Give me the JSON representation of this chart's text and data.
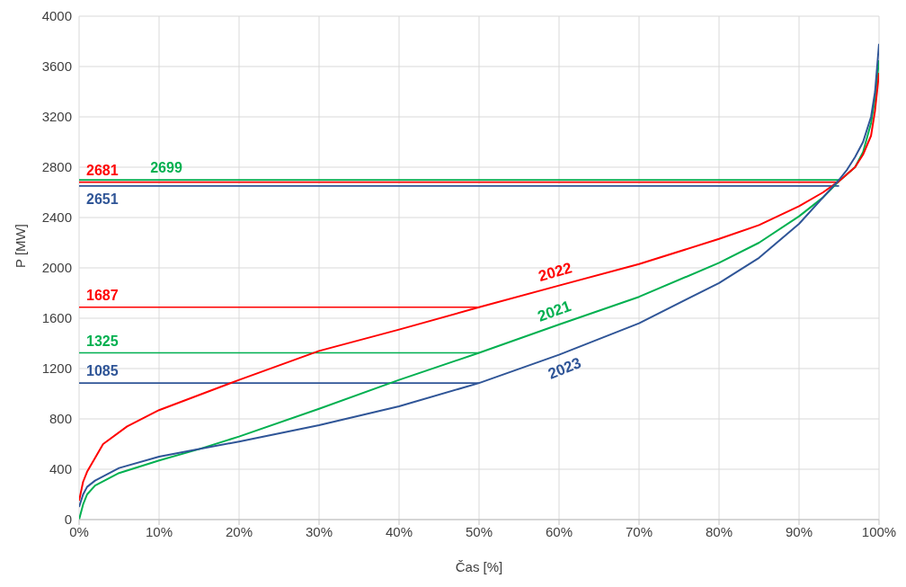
{
  "chart_data": {
    "type": "line",
    "xlabel": "Čas [%]",
    "ylabel": "P [MW]",
    "xlim": [
      0,
      100
    ],
    "xticks": [
      {
        "value": 0,
        "label": "0%"
      },
      {
        "value": 10,
        "label": "10%"
      },
      {
        "value": 20,
        "label": "20%"
      },
      {
        "value": 30,
        "label": "30%"
      },
      {
        "value": 40,
        "label": "40%"
      },
      {
        "value": 50,
        "label": "50%"
      },
      {
        "value": 60,
        "label": "60%"
      },
      {
        "value": 70,
        "label": "70%"
      },
      {
        "value": 80,
        "label": "80%"
      },
      {
        "value": 90,
        "label": "90%"
      },
      {
        "value": 100,
        "label": "100%"
      }
    ],
    "ylim": [
      0,
      4000
    ],
    "yticks": [
      0,
      400,
      800,
      1200,
      1600,
      2000,
      2400,
      2800,
      3200,
      3600,
      4000
    ],
    "grid": true,
    "legend": false,
    "marker": "none",
    "line_style": "solid",
    "series": [
      {
        "color": "#00b050",
        "x": [
          0,
          8,
          95
        ],
        "values": [
          2699,
          2699,
          2699
        ],
        "value_labels": [
          null,
          "2699",
          null
        ]
      },
      {
        "color": "#ff0000",
        "x": [
          0,
          95
        ],
        "values": [
          2681,
          2681
        ],
        "value_labels": [
          "2681",
          null
        ]
      },
      {
        "color": "#2f5597",
        "x": [
          0,
          95
        ],
        "values": [
          2651,
          2651
        ],
        "value_labels": [
          "2651",
          null
        ]
      },
      {
        "color": "#ff0000",
        "x": [
          0,
          50
        ],
        "values": [
          1687,
          1687
        ],
        "value_labels": [
          "1687",
          null
        ]
      },
      {
        "color": "#00b050",
        "x": [
          0,
          50
        ],
        "values": [
          1325,
          1325
        ],
        "value_labels": [
          "1325",
          null
        ]
      },
      {
        "color": "#2f5597",
        "x": [
          0,
          50
        ],
        "values": [
          1085,
          1085
        ],
        "value_labels": [
          "1085",
          null
        ]
      },
      {
        "name": "2021",
        "color": "#00b050",
        "x": [
          0,
          0.5,
          1,
          2,
          5,
          10,
          15,
          20,
          30,
          40,
          50,
          60,
          70,
          80,
          85,
          90,
          93,
          95,
          97,
          98,
          99,
          99.5,
          100
        ],
        "values": [
          0,
          120,
          200,
          270,
          370,
          470,
          560,
          660,
          880,
          1110,
          1325,
          1550,
          1770,
          2040,
          2200,
          2410,
          2560,
          2690,
          2800,
          2920,
          3150,
          3350,
          3650
        ]
      },
      {
        "name": "2022",
        "color": "#ff0000",
        "x": [
          0,
          0.5,
          1,
          3,
          6,
          10,
          20,
          30,
          40,
          50,
          60,
          70,
          80,
          85,
          90,
          93,
          95,
          97,
          98,
          99,
          99.5,
          100
        ],
        "values": [
          150,
          300,
          380,
          600,
          740,
          870,
          1110,
          1340,
          1510,
          1687,
          1860,
          2030,
          2230,
          2340,
          2490,
          2600,
          2690,
          2800,
          2900,
          3050,
          3250,
          3550
        ]
      },
      {
        "name": "2023",
        "color": "#2f5597",
        "x": [
          0,
          0.5,
          1,
          2,
          5,
          10,
          15,
          20,
          30,
          40,
          50,
          60,
          70,
          80,
          85,
          90,
          93,
          95,
          96,
          97,
          98,
          99,
          99.5,
          100
        ],
        "values": [
          100,
          200,
          260,
          310,
          410,
          500,
          560,
          620,
          750,
          900,
          1085,
          1310,
          1560,
          1880,
          2080,
          2350,
          2560,
          2700,
          2780,
          2880,
          3000,
          3200,
          3400,
          3780
        ]
      }
    ]
  }
}
